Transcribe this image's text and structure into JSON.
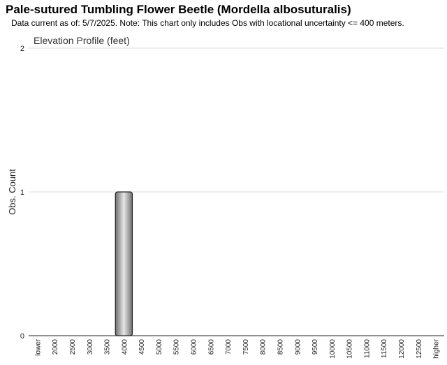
{
  "header": {
    "title": "Pale-sutured Tumbling Flower Beetle   (Mordella albosuturalis)",
    "subtitle": "Data current as of: 5/7/2025.     Note: This chart only includes Obs with locational uncertainty <= 400 meters."
  },
  "chart_data": {
    "type": "bar",
    "title": "Elevation Profile (feet)",
    "xlabel": "",
    "ylabel": "Obs. Count",
    "categories": [
      "lower",
      "2000",
      "2500",
      "3000",
      "3500",
      "4000",
      "4500",
      "5000",
      "5500",
      "6000",
      "6500",
      "7000",
      "7500",
      "8000",
      "8500",
      "9000",
      "9500",
      "10000",
      "10500",
      "11000",
      "11500",
      "12000",
      "12500",
      "higher"
    ],
    "values": [
      0,
      0,
      0,
      0,
      0,
      1,
      0,
      0,
      0,
      0,
      0,
      0,
      0,
      0,
      0,
      0,
      0,
      0,
      0,
      0,
      0,
      0,
      0,
      0
    ],
    "ylim": [
      0,
      2
    ],
    "yticks": [
      "0",
      "1",
      "2"
    ],
    "grid": true,
    "colors": {
      "bar_dark": "#6e6e6e",
      "bar_light": "#e6e6e6",
      "grid": "#dddddd"
    }
  }
}
